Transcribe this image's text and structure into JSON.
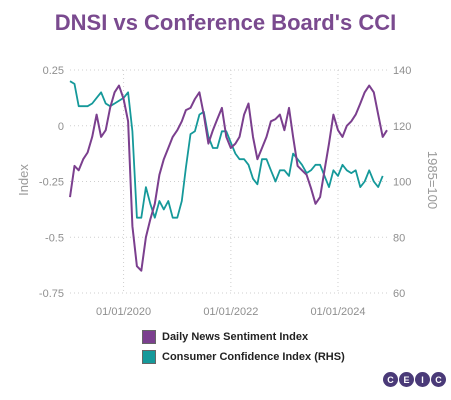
{
  "colors": {
    "title": "#7a4a8f",
    "dnsi": "#7b3f8e",
    "cci": "#15999a",
    "logo": "#4a3a78"
  },
  "chart_data": {
    "type": "line",
    "title": "DNSI vs Conference Board's CCI",
    "ylabel_left": "Index",
    "ylabel_right": "1985=100",
    "x_ticks": [
      "01/01/2020",
      "01/01/2022",
      "01/01/2024"
    ],
    "y_left_ticks": [
      "0.25",
      "0",
      "-0.25",
      "-0.5",
      "-0.75"
    ],
    "y_right_ticks": [
      "140",
      "120",
      "100",
      "80",
      "60"
    ],
    "ylim_left": [
      -0.75,
      0.25
    ],
    "ylim_right": [
      60,
      140
    ],
    "xlim": [
      "2019-01-01",
      "2024-11-30"
    ],
    "grid": true,
    "legend_position": "bottom",
    "series": [
      {
        "name": "Daily News Sentiment Index",
        "axis": "left",
        "x": [
          "2019-01-01",
          "2019-02-01",
          "2019-03-01",
          "2019-04-01",
          "2019-05-01",
          "2019-06-01",
          "2019-07-01",
          "2019-08-01",
          "2019-09-01",
          "2019-10-01",
          "2019-11-01",
          "2019-12-01",
          "2020-01-01",
          "2020-02-01",
          "2020-03-01",
          "2020-04-01",
          "2020-05-01",
          "2020-06-01",
          "2020-07-01",
          "2020-08-01",
          "2020-09-01",
          "2020-10-01",
          "2020-11-01",
          "2020-12-01",
          "2021-01-01",
          "2021-02-01",
          "2021-03-01",
          "2021-04-01",
          "2021-05-01",
          "2021-06-01",
          "2021-07-01",
          "2021-08-01",
          "2021-09-01",
          "2021-10-01",
          "2021-11-01",
          "2021-12-01",
          "2022-01-01",
          "2022-02-01",
          "2022-03-01",
          "2022-04-01",
          "2022-05-01",
          "2022-06-01",
          "2022-07-01",
          "2022-08-01",
          "2022-09-01",
          "2022-10-01",
          "2022-11-01",
          "2022-12-01",
          "2023-01-01",
          "2023-02-01",
          "2023-03-01",
          "2023-04-01",
          "2023-05-01",
          "2023-06-01",
          "2023-07-01",
          "2023-08-01",
          "2023-09-01",
          "2023-10-01",
          "2023-11-01",
          "2023-12-01",
          "2024-01-01",
          "2024-02-01",
          "2024-03-01",
          "2024-04-01",
          "2024-05-01",
          "2024-06-01",
          "2024-07-01",
          "2024-08-01",
          "2024-09-01",
          "2024-10-01",
          "2024-11-01",
          "2024-11-30"
        ],
        "values": [
          -0.32,
          -0.18,
          -0.2,
          -0.15,
          -0.12,
          -0.05,
          0.05,
          -0.05,
          -0.02,
          0.08,
          0.15,
          0.18,
          0.12,
          0.02,
          -0.45,
          -0.63,
          -0.65,
          -0.5,
          -0.42,
          -0.35,
          -0.22,
          -0.15,
          -0.1,
          -0.05,
          -0.02,
          0.02,
          0.07,
          0.08,
          0.12,
          0.15,
          0.05,
          -0.08,
          -0.02,
          0.03,
          0.08,
          -0.05,
          -0.1,
          -0.08,
          -0.05,
          0.05,
          0.1,
          -0.05,
          -0.15,
          -0.1,
          -0.05,
          0.02,
          0.03,
          0.05,
          -0.02,
          0.08,
          -0.05,
          -0.18,
          -0.2,
          -0.22,
          -0.28,
          -0.35,
          -0.32,
          -0.2,
          -0.08,
          0.05,
          -0.02,
          -0.05,
          0.0,
          0.02,
          0.05,
          0.1,
          0.15,
          0.18,
          0.15,
          0.05,
          -0.05,
          -0.02
        ]
      },
      {
        "name": "Consumer Confidence Index (RHS)",
        "axis": "right",
        "x": [
          "2019-01-01",
          "2019-02-01",
          "2019-03-01",
          "2019-04-01",
          "2019-05-01",
          "2019-06-01",
          "2019-07-01",
          "2019-08-01",
          "2019-09-01",
          "2019-10-01",
          "2019-11-01",
          "2019-12-01",
          "2020-01-01",
          "2020-02-01",
          "2020-03-01",
          "2020-04-01",
          "2020-05-01",
          "2020-06-01",
          "2020-07-01",
          "2020-08-01",
          "2020-09-01",
          "2020-10-01",
          "2020-11-01",
          "2020-12-01",
          "2021-01-01",
          "2021-02-01",
          "2021-03-01",
          "2021-04-01",
          "2021-05-01",
          "2021-06-01",
          "2021-07-01",
          "2021-08-01",
          "2021-09-01",
          "2021-10-01",
          "2021-11-01",
          "2021-12-01",
          "2022-01-01",
          "2022-02-01",
          "2022-03-01",
          "2022-04-01",
          "2022-05-01",
          "2022-06-01",
          "2022-07-01",
          "2022-08-01",
          "2022-09-01",
          "2022-10-01",
          "2022-11-01",
          "2022-12-01",
          "2023-01-01",
          "2023-02-01",
          "2023-03-01",
          "2023-04-01",
          "2023-05-01",
          "2023-06-01",
          "2023-07-01",
          "2023-08-01",
          "2023-09-01",
          "2023-10-01",
          "2023-11-01",
          "2023-12-01",
          "2024-01-01",
          "2024-02-01",
          "2024-03-01",
          "2024-04-01",
          "2024-05-01",
          "2024-06-01",
          "2024-07-01",
          "2024-08-01",
          "2024-09-01",
          "2024-10-01",
          "2024-11-01"
        ],
        "values": [
          136,
          135,
          127,
          127,
          127,
          128,
          130,
          132,
          128,
          127,
          128,
          129,
          130,
          132,
          118,
          87,
          87,
          98,
          92,
          87,
          93,
          90,
          93,
          87,
          87,
          93,
          105,
          117,
          118,
          124,
          125,
          116,
          112,
          112,
          118,
          118,
          114,
          110,
          108,
          108,
          106,
          101,
          99,
          108,
          108,
          104,
          100,
          104,
          104,
          102,
          110,
          108,
          106,
          103,
          104,
          106,
          106,
          102,
          98,
          104,
          102,
          106,
          104,
          103,
          104,
          98,
          100,
          104,
          100,
          98,
          102
        ]
      }
    ]
  },
  "legend": {
    "dnsi_label": "Daily News Sentiment Index",
    "cci_label": "Consumer Confidence Index (RHS)"
  },
  "logo": {
    "letters": [
      "C",
      "E",
      "I",
      "C"
    ]
  }
}
